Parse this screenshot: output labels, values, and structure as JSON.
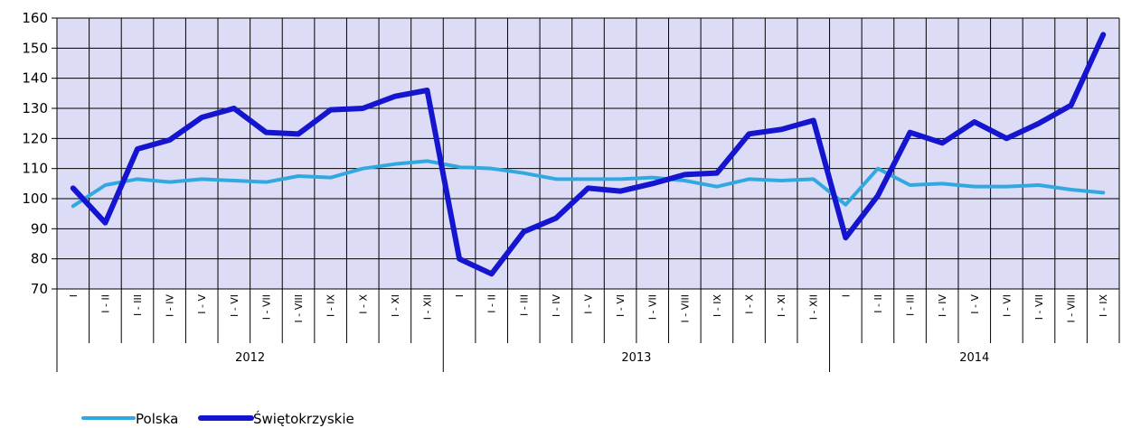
{
  "chart_data": {
    "type": "line",
    "title": "",
    "xlabel": "",
    "ylabel": "",
    "ylim": [
      70,
      160
    ],
    "yticks": [
      "70",
      "80",
      "90",
      "100",
      "110",
      "120",
      "130",
      "140",
      "150",
      "160"
    ],
    "grid": true,
    "legend_position": "bottom-left",
    "colors": {
      "plot_bg": "#dcdcf6",
      "grid": "#000000",
      "Polska": "#31a9e0",
      "Świętokrzyskie": "#1515d0"
    },
    "categories": [
      "I",
      "I - II",
      "I - III",
      "I - IV",
      "I - V",
      "I - VI",
      "I - VII",
      "I - VIII",
      "I - IX",
      "I - X",
      "I - XI",
      "I - XII",
      "I",
      "I - II",
      "I - III",
      "I - IV",
      "I - V",
      "I - VI",
      "I - VII",
      "I - VIII",
      "I - IX",
      "I - X",
      "I - XI",
      "I - XII",
      "I",
      "I - II",
      "I - III",
      "I - IV",
      "I - V",
      "I - VI",
      "I - VII",
      "I - VIII",
      "I - IX"
    ],
    "years": [
      {
        "label": "2012",
        "count": 12
      },
      {
        "label": "2013",
        "count": 12
      },
      {
        "label": "2014",
        "count": 9
      }
    ],
    "series": [
      {
        "name": "Polska",
        "values": [
          97.5,
          104.5,
          106.5,
          105.5,
          106.5,
          106,
          105.5,
          107.5,
          107,
          110,
          111.5,
          112.5,
          110.5,
          110,
          108.5,
          106.5,
          106.5,
          106.5,
          107,
          106,
          104,
          106.5,
          106,
          106.5,
          98,
          110,
          104.5,
          105,
          104,
          104,
          104.5,
          103,
          102
        ]
      },
      {
        "name": "Świętokrzyskie",
        "values": [
          103.5,
          92,
          116.5,
          119.5,
          127,
          130,
          122,
          121.5,
          129.5,
          130,
          134,
          136,
          80,
          75,
          89,
          93.5,
          103.5,
          102.5,
          105,
          108,
          108.5,
          121.5,
          123,
          126,
          87,
          101,
          122,
          118.5,
          125.5,
          120,
          125,
          131,
          154.5
        ]
      }
    ]
  }
}
